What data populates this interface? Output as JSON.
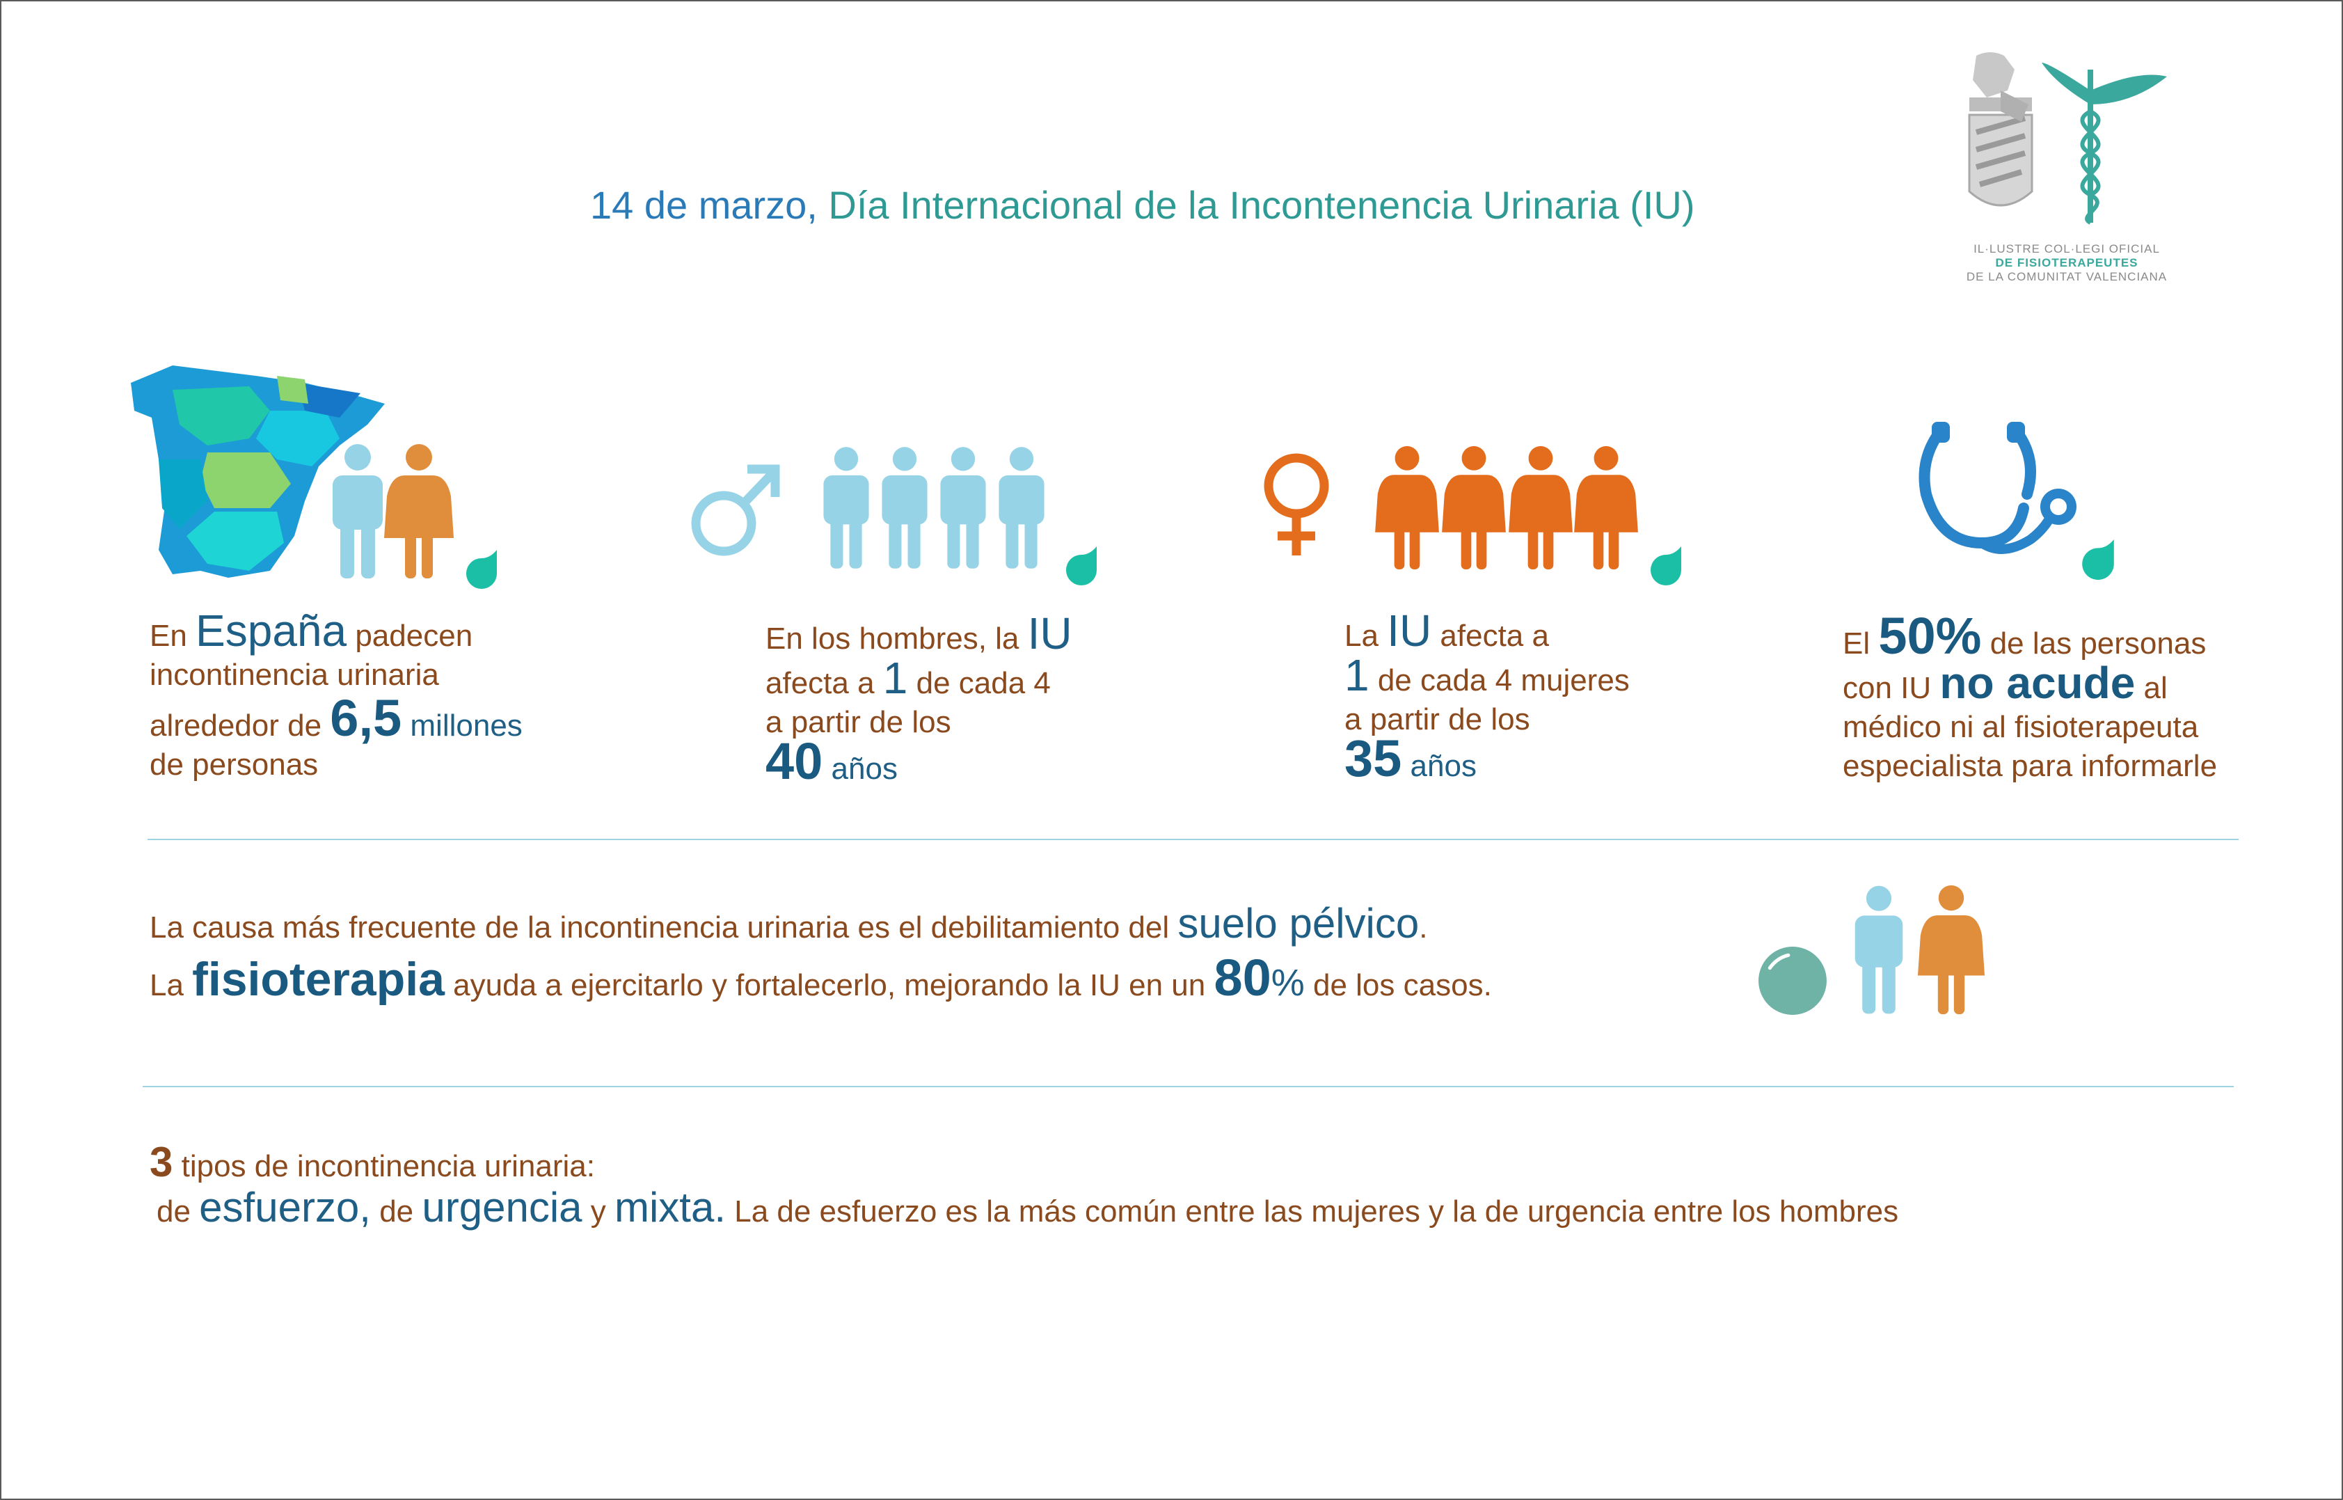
{
  "header": {
    "title_date": "14 de marzo,",
    "title_rest": " Día Internacional de la Incontenencia Urinaria (IU)"
  },
  "logo": {
    "line1": "IL·LUSTRE COL·LEGI OFICIAL",
    "line2": "DE FISIOTERAPEUTES",
    "line3": "DE LA COMUNITAT VALENCIANA"
  },
  "stats": [
    {
      "p1": "En ",
      "h1": "España",
      "p2": " padecen",
      "p3": "incontinencia urinaria",
      "p4": "alrededor de ",
      "h2": "6,5",
      "p5": " millones",
      "p6": "de personas"
    },
    {
      "p1": "En los hombres, la ",
      "h1": "IU",
      "p2": "afecta a ",
      "h2": "1",
      "p3": " de cada 4",
      "p4": "a partir de los",
      "h3": "40",
      "p5": " años"
    },
    {
      "p1": "La ",
      "h1": "IU",
      "p2": " afecta a",
      "h2": "1",
      "p3": " de cada 4 mujeres",
      "p4": "a partir de los",
      "h3": "35",
      "p5": " años"
    },
    {
      "p1": "El ",
      "h1": "50%",
      "p2": " de las personas",
      "p3": "con IU ",
      "h2": "no acude",
      "p4": " al",
      "p5": "médico ni al fisioterapeuta",
      "p6": "especialista para informarle"
    }
  ],
  "cause": {
    "line1_text": "La causa más frecuente de la incontinencia urinaria es el debilitamiento del ",
    "line1_highlight": "suelo pélvico",
    "line1_end": ".",
    "line2_a": "La ",
    "line2_highlight": "fisioterapia",
    "line2_b": " ayuda a ejercitarlo y fortalecerlo, mejorando la IU en un ",
    "line2_num": "80",
    "line2_pct": "%",
    "line2_end": " de los casos."
  },
  "types": {
    "count": "3",
    "line1": " tipos de incontinencia urinaria:",
    "de1": "de ",
    "t1": "esfuerzo,",
    "de2": " de ",
    "t2": "urgencia",
    "y": " y ",
    "t3": "mixta.",
    "rest": " La de esfuerzo es la más común entre las mujeres y la de urgencia entre los hombres"
  },
  "colors": {
    "man": "#97d3e6",
    "woman_orange": "#e36d1c",
    "woman_tan": "#e08e3c",
    "drop": "#1bbfa6",
    "ball": "#6fb3a6",
    "stethoscope": "#2a84c9",
    "brown_text": "#8a4a1e",
    "blue_text": "#1f5f86"
  },
  "icons": [
    "spain-map-icon",
    "man-icon",
    "woman-icon",
    "male-symbol-icon",
    "female-symbol-icon",
    "drop-icon",
    "stethoscope-icon",
    "exercise-ball-icon",
    "logo-emblem-icon"
  ]
}
